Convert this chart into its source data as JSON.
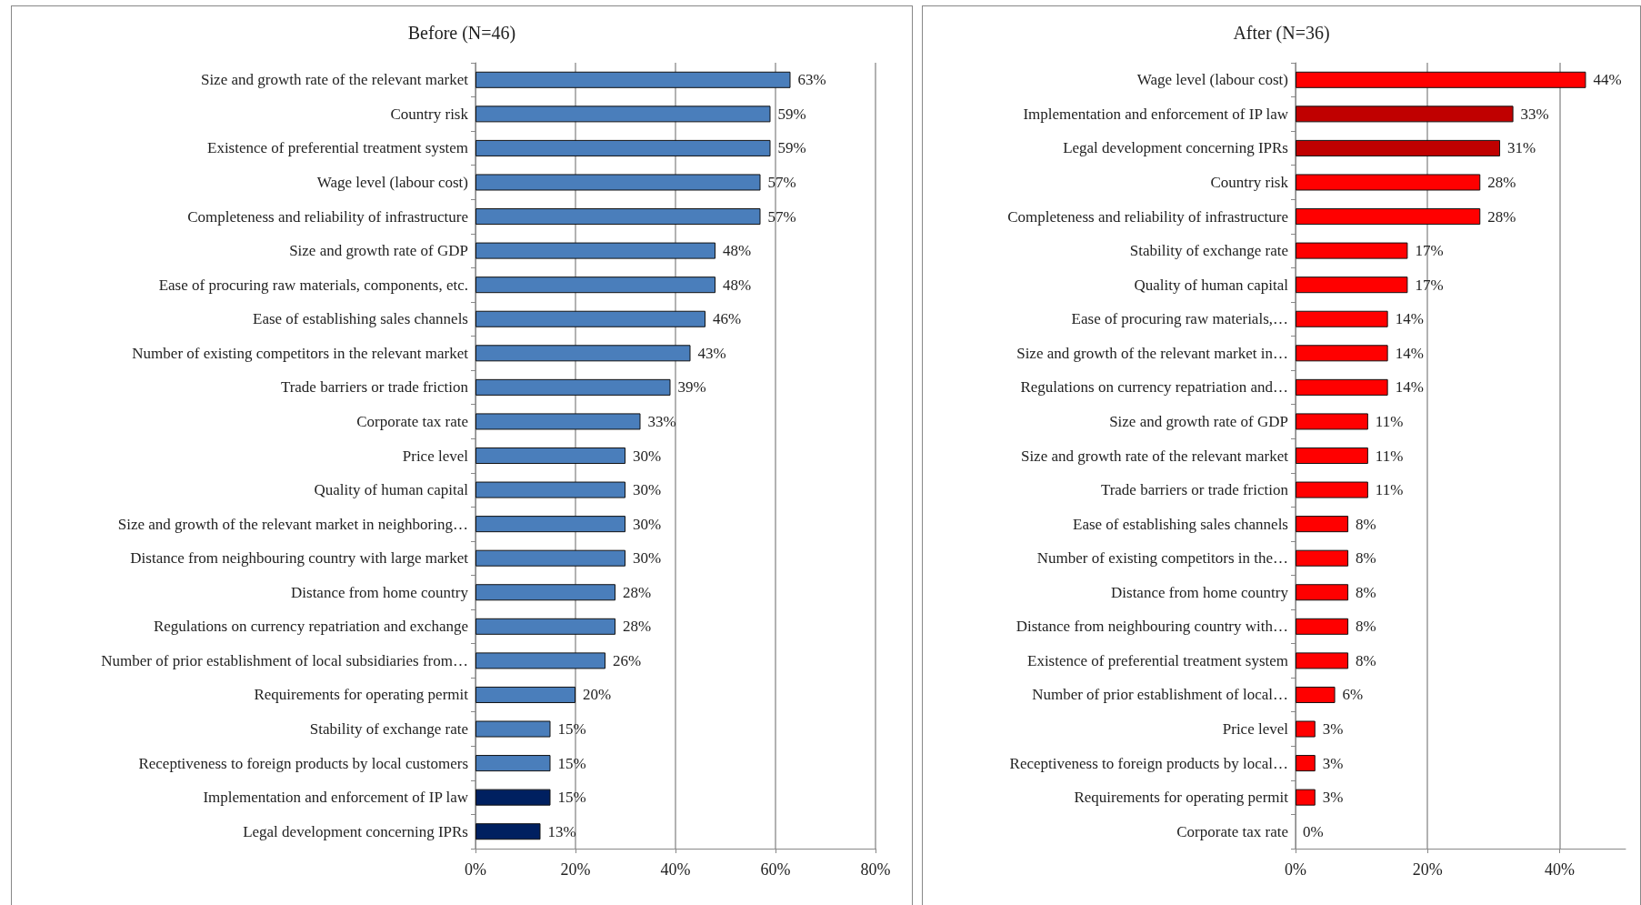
{
  "chart_data": [
    {
      "type": "bar",
      "orientation": "horizontal",
      "title": "Before (N=46)",
      "categories": [
        "Size and growth rate of the relevant market",
        "Country risk",
        "Existence of preferential treatment system",
        "Wage level (labour cost)",
        "Completeness and reliability of infrastructure",
        "Size and growth rate of GDP",
        "Ease of procuring raw materials, components, etc.",
        "Ease of establishing sales channels",
        "Number of existing competitors in the relevant market",
        "Trade barriers or trade friction",
        "Corporate tax rate",
        "Price level",
        "Quality of human capital",
        "Size and growth of the relevant market in neighboring…",
        "Distance from neighbouring country with large market",
        "Distance from home country",
        "Regulations on currency repatriation and exchange",
        "Number of prior establishment of local subsidiaries from…",
        "Requirements for operating permit",
        "Stability of exchange rate",
        "Receptiveness to foreign products by local customers",
        "Implementation and enforcement of IP law",
        "Legal development concerning IPRs"
      ],
      "values": [
        63,
        59,
        59,
        57,
        57,
        48,
        48,
        46,
        43,
        39,
        33,
        30,
        30,
        30,
        30,
        28,
        28,
        26,
        20,
        15,
        15,
        15,
        13
      ],
      "value_labels": [
        "63%",
        "59%",
        "59%",
        "57%",
        "57%",
        "48%",
        "48%",
        "46%",
        "43%",
        "39%",
        "33%",
        "30%",
        "30%",
        "30%",
        "30%",
        "28%",
        "28%",
        "26%",
        "20%",
        "15%",
        "15%",
        "15%",
        "13%"
      ],
      "colors": [
        "#4a7ebb",
        "#4a7ebb",
        "#4a7ebb",
        "#4a7ebb",
        "#4a7ebb",
        "#4a7ebb",
        "#4a7ebb",
        "#4a7ebb",
        "#4a7ebb",
        "#4a7ebb",
        "#4a7ebb",
        "#4a7ebb",
        "#4a7ebb",
        "#4a7ebb",
        "#4a7ebb",
        "#4a7ebb",
        "#4a7ebb",
        "#4a7ebb",
        "#4a7ebb",
        "#4a7ebb",
        "#4a7ebb",
        "#002060",
        "#002060"
      ],
      "xlim": [
        0,
        80
      ],
      "xticks": [
        {
          "value": 0,
          "label": "0%"
        },
        {
          "value": 20,
          "label": "20%"
        },
        {
          "value": 40,
          "label": "40%"
        },
        {
          "value": 60,
          "label": "60%"
        },
        {
          "value": 80,
          "label": "80%"
        }
      ],
      "grid": "x"
    },
    {
      "type": "bar",
      "orientation": "horizontal",
      "title": "After (N=36)",
      "categories": [
        "Wage level (labour cost)",
        "Implementation and enforcement of IP law",
        "Legal development concerning IPRs",
        "Country risk",
        "Completeness and reliability of infrastructure",
        "Stability of exchange rate",
        "Quality of human capital",
        "Ease of procuring raw materials,…",
        "Size and growth of the relevant market in…",
        "Regulations on currency repatriation and…",
        "Size and growth rate of GDP",
        "Size and growth rate of the relevant market",
        "Trade barriers or trade friction",
        "Ease of establishing sales channels",
        "Number of existing competitors in the…",
        "Distance from home country",
        "Distance from neighbouring country with…",
        "Existence of preferential treatment system",
        "Number of prior establishment of local…",
        "Price level",
        "Receptiveness to foreign products by local…",
        "Requirements for operating permit",
        "Corporate tax rate"
      ],
      "values": [
        44,
        33,
        31,
        28,
        28,
        17,
        17,
        14,
        14,
        14,
        11,
        11,
        11,
        8,
        8,
        8,
        8,
        8,
        6,
        3,
        3,
        3,
        0
      ],
      "value_labels": [
        "44%",
        "33%",
        "31%",
        "28%",
        "28%",
        "17%",
        "17%",
        "14%",
        "14%",
        "14%",
        "11%",
        "11%",
        "11%",
        "8%",
        "8%",
        "8%",
        "8%",
        "8%",
        "6%",
        "3%",
        "3%",
        "3%",
        "0%"
      ],
      "colors": [
        "#ff0000",
        "#c00000",
        "#c00000",
        "#ff0000",
        "#ff0000",
        "#ff0000",
        "#ff0000",
        "#ff0000",
        "#ff0000",
        "#ff0000",
        "#ff0000",
        "#ff0000",
        "#ff0000",
        "#ff0000",
        "#ff0000",
        "#ff0000",
        "#ff0000",
        "#ff0000",
        "#ff0000",
        "#ff0000",
        "#ff0000",
        "#ff0000",
        "#ff0000"
      ],
      "xlim": [
        0,
        50
      ],
      "xticks": [
        {
          "value": 0,
          "label": "0%"
        },
        {
          "value": 20,
          "label": "20%"
        },
        {
          "value": 40,
          "label": "40%"
        }
      ],
      "grid": "x"
    }
  ]
}
